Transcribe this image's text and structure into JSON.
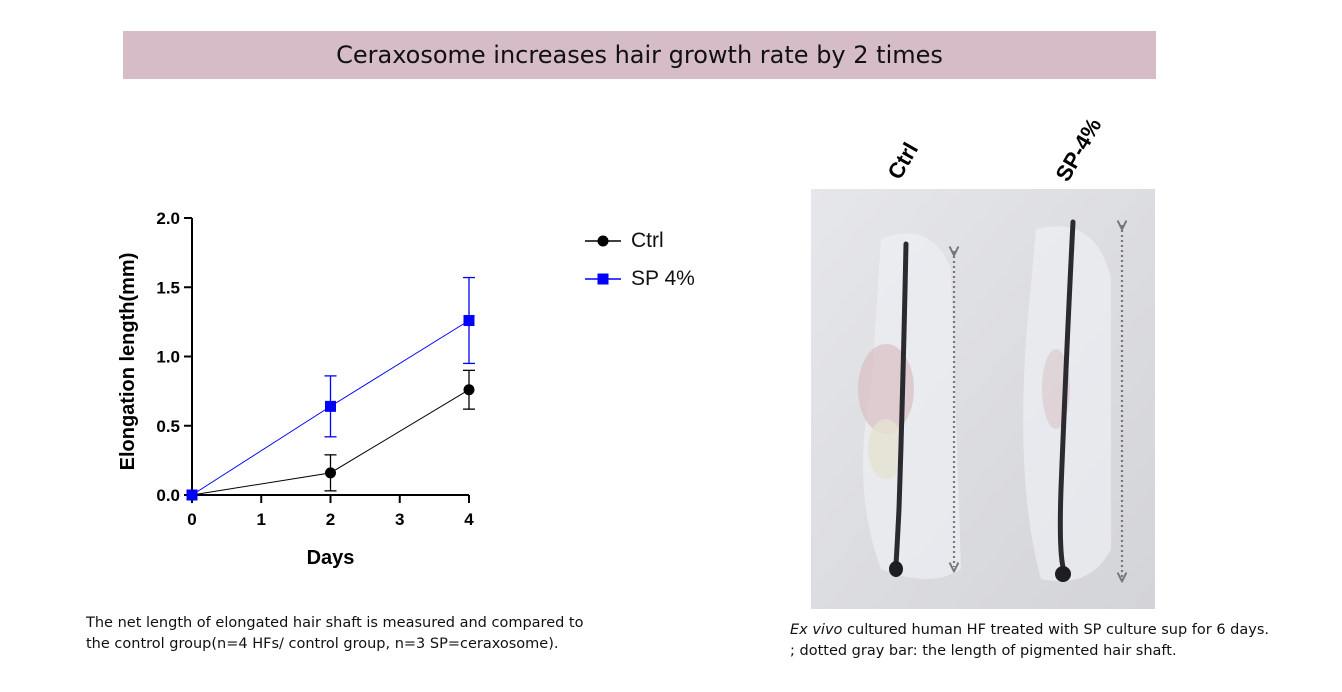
{
  "title": "Ceraxosome increases hair growth rate by 2 times",
  "chart_data": {
    "type": "line",
    "xlabel": "Days",
    "ylabel": "Elongation length(mm)",
    "x_ticks": [
      0,
      1,
      2,
      3,
      4
    ],
    "y_ticks": [
      "0.0",
      "0.5",
      "1.0",
      "1.5",
      "2.0"
    ],
    "xlim": [
      0,
      4
    ],
    "ylim": [
      0,
      2.0
    ],
    "series": [
      {
        "name": "Ctrl",
        "color": "#000000",
        "marker": "circle",
        "x": [
          0,
          2,
          4
        ],
        "values": [
          0.0,
          0.16,
          0.76
        ],
        "error": [
          0.0,
          0.13,
          0.14
        ]
      },
      {
        "name": "SP 4%",
        "color": "#0000ff",
        "marker": "square",
        "x": [
          0,
          2,
          4
        ],
        "values": [
          0.0,
          0.64,
          1.26
        ],
        "error": [
          0.0,
          0.22,
          0.31
        ]
      }
    ]
  },
  "caption_left": {
    "line1": "The net length of elongated hair shaft is measured and compared to",
    "line2": "the control group(n=4 HFs/ control group, n=3 SP=ceraxosome)."
  },
  "photo": {
    "label_ctrl": "Ctrl",
    "label_sp": "SP-4%"
  },
  "caption_right": {
    "italic": "Ex vivo",
    "line1_rest": " cultured human HF treated with SP culture sup for 6 days.",
    "line2": "; dotted gray bar: the length of pigmented  hair shaft."
  }
}
